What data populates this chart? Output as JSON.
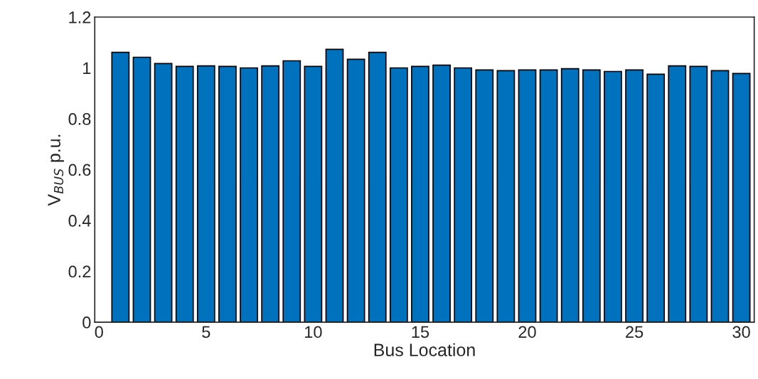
{
  "chart_data": {
    "type": "bar",
    "xlabel": "Bus Location",
    "ylabel": "V$_{BUS}$ p.u.",
    "x": [
      1,
      2,
      3,
      4,
      5,
      6,
      7,
      8,
      9,
      10,
      11,
      12,
      13,
      14,
      15,
      16,
      17,
      18,
      19,
      20,
      21,
      22,
      23,
      24,
      25,
      26,
      27,
      28,
      29,
      30
    ],
    "values": [
      1.061,
      1.042,
      1.017,
      1.006,
      1.008,
      1.006,
      1.0,
      1.008,
      1.028,
      1.006,
      1.073,
      1.034,
      1.061,
      1.0,
      1.006,
      1.011,
      1.0,
      0.992,
      0.989,
      0.992,
      0.992,
      0.997,
      0.992,
      0.986,
      0.992,
      0.975,
      1.008,
      1.006,
      0.989,
      0.978
    ],
    "color": "#0072bd",
    "xlim": [
      -0.2,
      30.6
    ],
    "xticks": [
      0,
      5,
      10,
      15,
      20,
      25,
      30
    ],
    "ylim": [
      0,
      1.2
    ],
    "yticks": [
      0,
      0.2,
      0.4,
      0.6,
      0.8,
      1,
      1.2
    ]
  }
}
